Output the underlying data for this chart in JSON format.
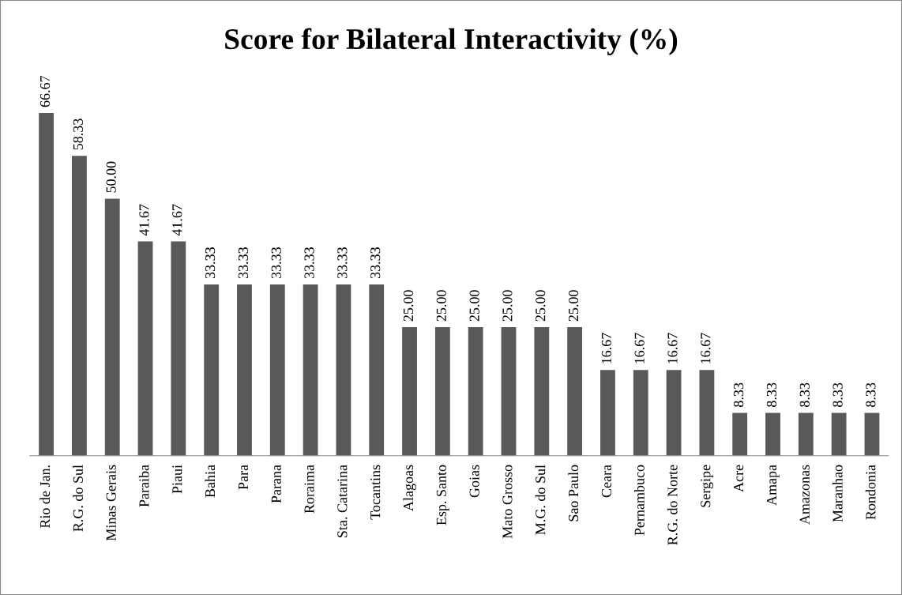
{
  "chart_data": {
    "type": "bar",
    "title": "Score for Bilateral Interactivity (%)",
    "categories": [
      "Rio de Jan.",
      "R.G. do Sul",
      "Minas Gerais",
      "Paraiba",
      "Piaui",
      "Bahia",
      "Para",
      "Parana",
      "Roraima",
      "Sta. Catarina",
      "Tocantins",
      "Alagoas",
      "Esp. Santo",
      "Goias",
      "Mato Grosso",
      "M.G. do Sul",
      "Sao Paulo",
      "Ceara",
      "Pernambuco",
      "R.G. do Norte",
      "Sergipe",
      "Acre",
      "Amapa",
      "Amazonas",
      "Maranhao",
      "Rondonia"
    ],
    "values": [
      66.67,
      58.33,
      50.0,
      41.67,
      41.67,
      33.33,
      33.33,
      33.33,
      33.33,
      33.33,
      33.33,
      25.0,
      25.0,
      25.0,
      25.0,
      25.0,
      25.0,
      16.67,
      16.67,
      16.67,
      16.67,
      8.33,
      8.33,
      8.33,
      8.33,
      8.33
    ],
    "value_labels": [
      "66.67",
      "58.33",
      "50.00",
      "41.67",
      "41.67",
      "33.33",
      "33.33",
      "33.33",
      "33.33",
      "33.33",
      "33.33",
      "25.00",
      "25.00",
      "25.00",
      "25.00",
      "25.00",
      "25.00",
      "16.67",
      "16.67",
      "16.67",
      "16.67",
      "8.33",
      "8.33",
      "8.33",
      "8.33",
      "8.33"
    ],
    "color": "#595959",
    "grid": false,
    "legend": false,
    "tick_labels": "x"
  }
}
